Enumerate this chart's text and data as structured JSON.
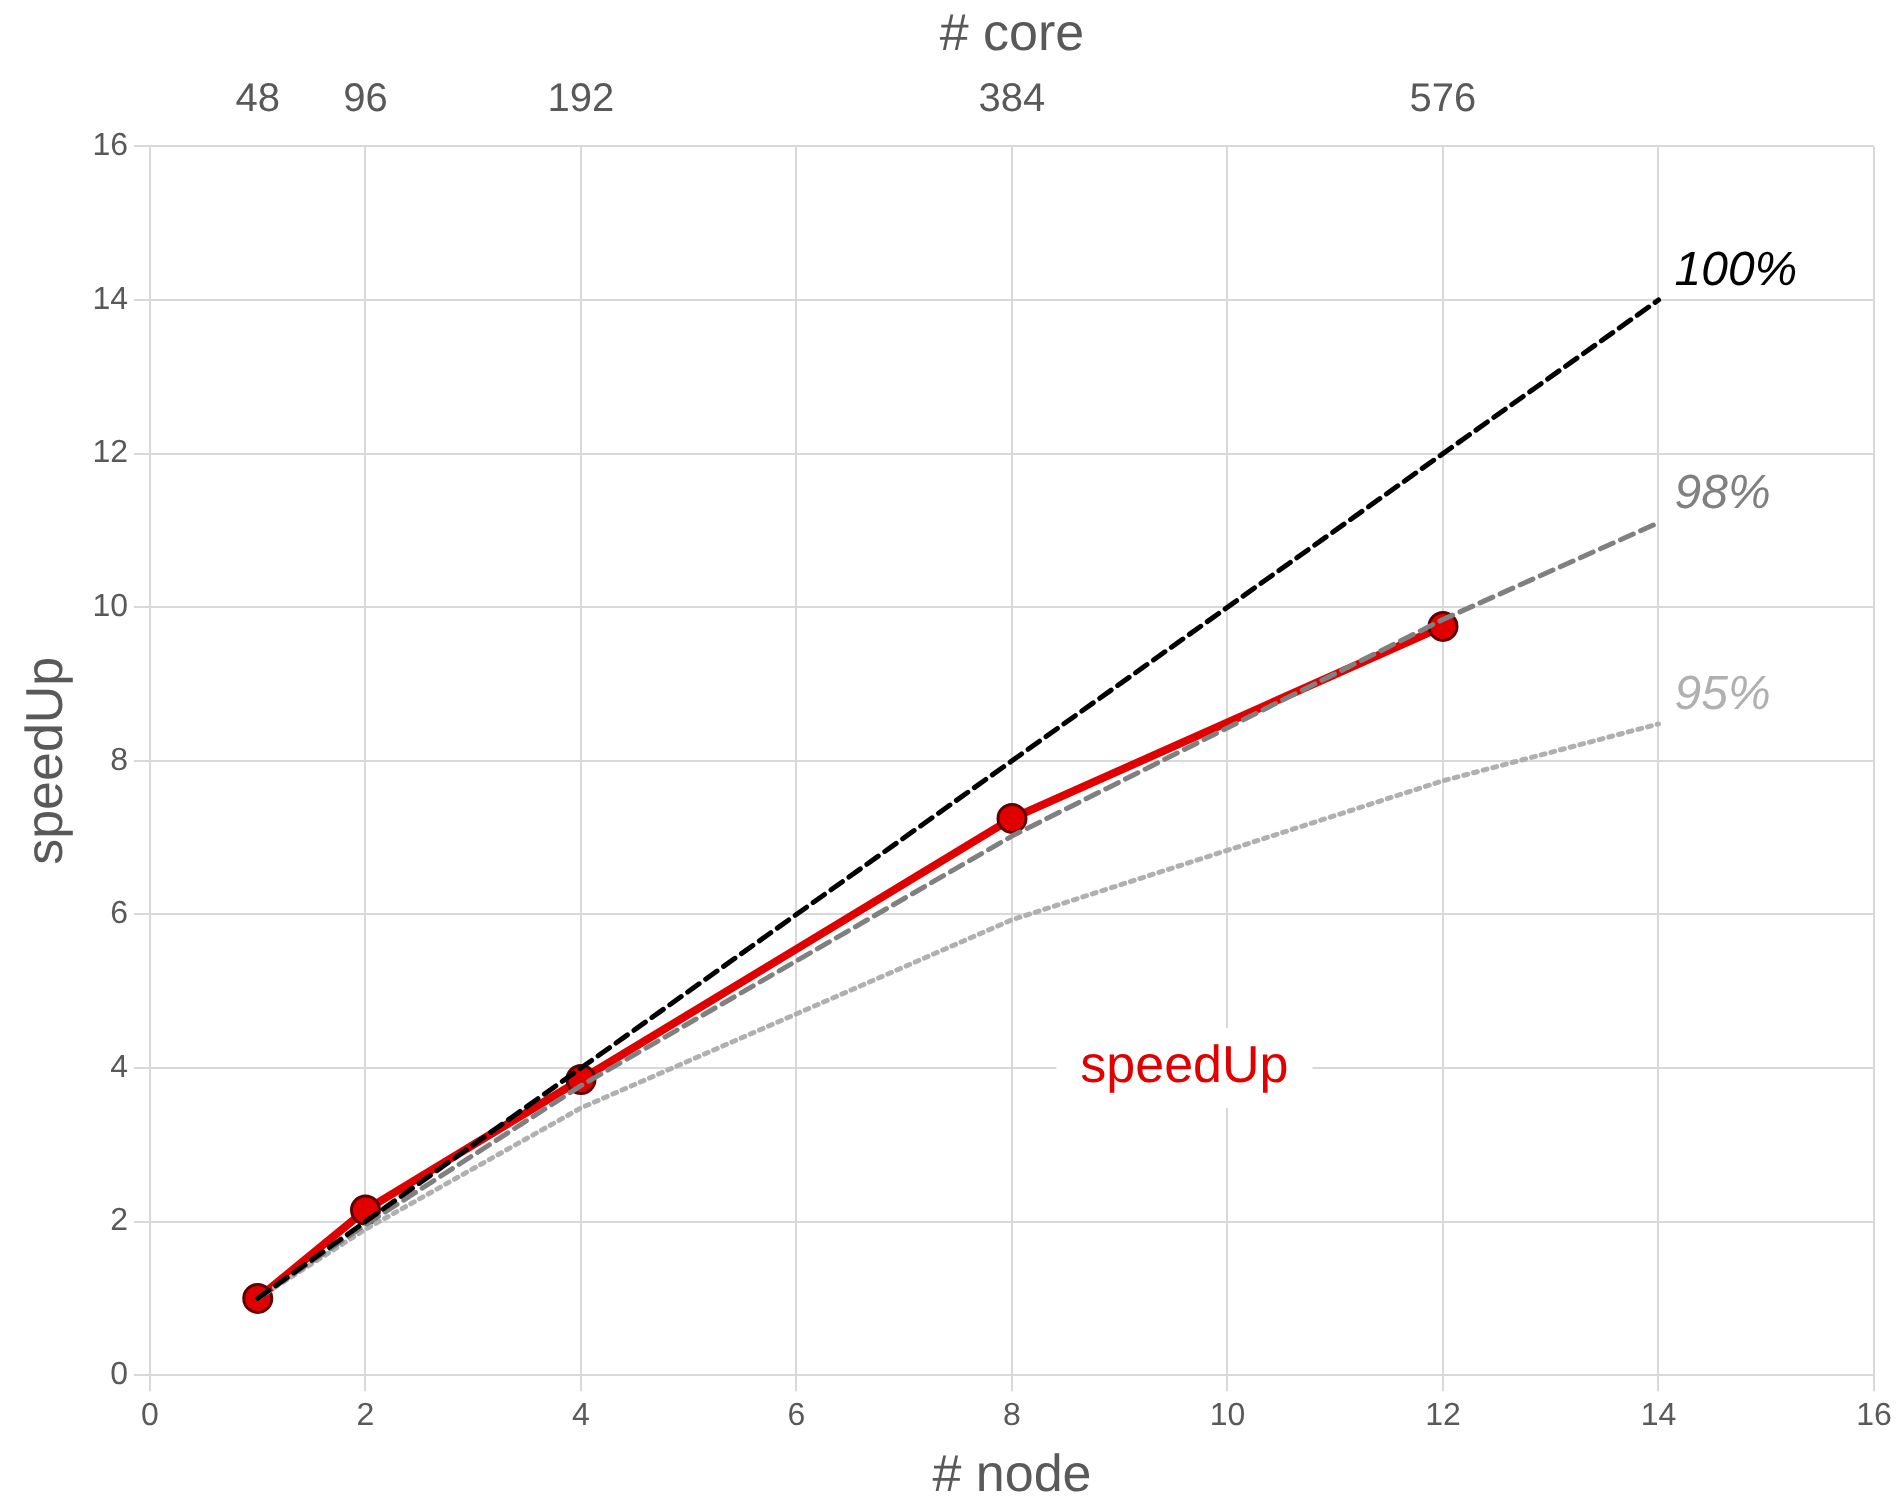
{
  "chart_data": {
    "type": "line",
    "xlabel": "# node",
    "ylabel": "speedUp",
    "x2label": "# core",
    "xlim": [
      0,
      16
    ],
    "xticks": [
      0,
      2,
      4,
      6,
      8,
      10,
      12,
      14,
      16
    ],
    "ylim": [
      0,
      16
    ],
    "yticks": [
      0,
      2,
      4,
      6,
      8,
      10,
      12,
      14,
      16
    ],
    "x2lim": [
      0,
      768
    ],
    "x2ticks": [
      48,
      96,
      192,
      384,
      576
    ],
    "grid": true,
    "legend": false,
    "series": [
      {
        "name": "100%",
        "color": "#000000",
        "line_style": "dashed",
        "marker": "none",
        "x": [
          1,
          14
        ],
        "values": [
          1,
          14
        ]
      },
      {
        "name": "98%",
        "color": "#808080",
        "line_style": "dashed",
        "marker": "none",
        "x": [
          1,
          2,
          4,
          8,
          12,
          14
        ],
        "values": [
          1,
          1.96,
          3.77,
          7.02,
          9.84,
          11.1
        ]
      },
      {
        "name": "95%",
        "color": "#b0b0b0",
        "line_style": "dotted",
        "marker": "none",
        "x": [
          1,
          2,
          4,
          8,
          12,
          14
        ],
        "values": [
          1,
          1.9,
          3.48,
          5.93,
          7.74,
          8.48
        ]
      },
      {
        "name": "speedUp",
        "color": "#e00000",
        "line_style": "solid",
        "marker": "circle",
        "x": [
          1,
          2,
          4,
          8,
          12
        ],
        "values": [
          1,
          2.15,
          3.85,
          7.25,
          9.75
        ]
      }
    ]
  }
}
